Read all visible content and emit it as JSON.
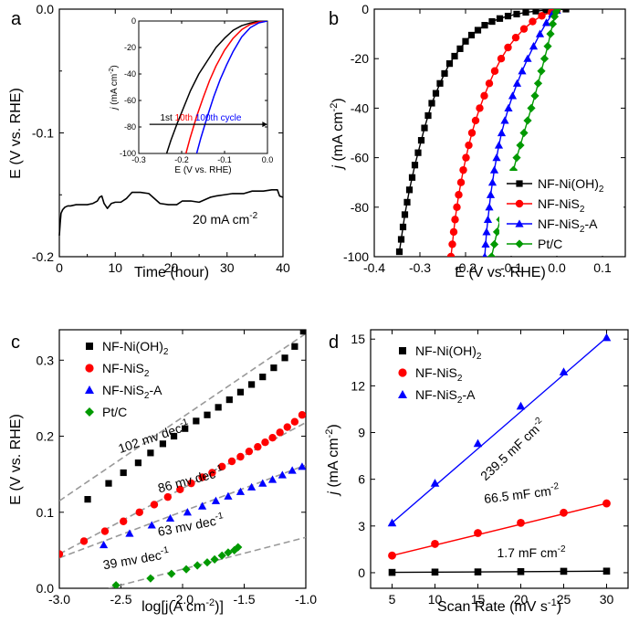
{
  "colors": {
    "black": "#000000",
    "red": "#ff0000",
    "blue": "#0000ff",
    "green": "#009900",
    "fit": "#999999"
  },
  "chart_data": [
    {
      "letter": "a",
      "type": "line",
      "xlabel": "Time (hour)",
      "ylabel": "E (V vs. RHE)",
      "xlim": [
        0,
        40
      ],
      "ylim": [
        -0.2,
        0.0
      ],
      "xticks": [
        "0",
        "10",
        "20",
        "30",
        "40"
      ],
      "yticks": [
        "-0.2",
        "-0.1",
        "0.0"
      ],
      "annotation": "20 mA cm",
      "annotation_sup": "-2",
      "series": [
        {
          "color": "black",
          "x": [
            0,
            0.15,
            0.3,
            0.6,
            1.0,
            1.5,
            2.0,
            3.0,
            4.0,
            5.0,
            6.0,
            6.8,
            7.2,
            7.6,
            8.0,
            8.6,
            9.3,
            10.0,
            11.0,
            12.0,
            12.6,
            13.0,
            13.5,
            14.5,
            16.0,
            18.0,
            19.5,
            21.0,
            22.0,
            23.5,
            25.0,
            27.0,
            28.0,
            29.5,
            31.0,
            33.0,
            34.5,
            36.5,
            38.0,
            39.0,
            39.4,
            40.0
          ],
          "y": [
            -0.183,
            -0.173,
            -0.165,
            -0.162,
            -0.16,
            -0.159,
            -0.159,
            -0.158,
            -0.158,
            -0.158,
            -0.157,
            -0.155,
            -0.152,
            -0.151,
            -0.157,
            -0.161,
            -0.157,
            -0.156,
            -0.156,
            -0.153,
            -0.15,
            -0.148,
            -0.148,
            -0.148,
            -0.149,
            -0.157,
            -0.158,
            -0.158,
            -0.155,
            -0.155,
            -0.156,
            -0.152,
            -0.151,
            -0.15,
            -0.149,
            -0.149,
            -0.147,
            -0.147,
            -0.146,
            -0.146,
            -0.151,
            -0.152
          ]
        }
      ],
      "inset": {
        "type": "line",
        "xlabel": "E (V vs. RHE)",
        "ylabel_j": "j",
        "ylabel_rest": " (mA cm",
        "ylabel_sup": "-2",
        "ylabel_end": ")",
        "xlim": [
          -0.3,
          0.0
        ],
        "ylim": [
          -100,
          0
        ],
        "xticks": [
          "-0.3",
          "-0.2",
          "-0.1",
          "0.0"
        ],
        "yticks": [
          "-100",
          "-80",
          "-60",
          "-40",
          "-20",
          "0"
        ],
        "cycle_labels": [
          "1st",
          "10th",
          "100th cycle"
        ],
        "series": [
          {
            "color": "black",
            "x": [
              -0.235,
              -0.225,
              -0.21,
              -0.195,
              -0.18,
              -0.16,
              -0.14,
              -0.12,
              -0.1,
              -0.08,
              -0.06,
              -0.04,
              -0.02,
              0.0
            ],
            "y": [
              -100,
              -90,
              -77,
              -65,
              -53,
              -40,
              -30,
              -20,
              -13,
              -7,
              -3.5,
              -1.5,
              -0.4,
              0
            ]
          },
          {
            "color": "red",
            "x": [
              -0.19,
              -0.18,
              -0.165,
              -0.15,
              -0.135,
              -0.12,
              -0.1,
              -0.08,
              -0.06,
              -0.04,
              -0.02,
              0.0
            ],
            "y": [
              -100,
              -88,
              -72,
              -58,
              -45,
              -34,
              -22,
              -13,
              -6.5,
              -2.5,
              -0.7,
              0
            ]
          },
          {
            "color": "blue",
            "x": [
              -0.165,
              -0.155,
              -0.14,
              -0.125,
              -0.11,
              -0.095,
              -0.08,
              -0.06,
              -0.04,
              -0.02,
              0.0
            ],
            "y": [
              -100,
              -88,
              -72,
              -57,
              -44,
              -33,
              -23,
              -12,
              -5,
              -1.4,
              0
            ]
          }
        ]
      }
    },
    {
      "letter": "b",
      "type": "line",
      "xlabel": "E (V vs. RHE)",
      "ylabel_j": "j",
      "ylabel_rest": " (mA cm",
      "ylabel_sup": "-2",
      "ylabel_end": ")",
      "xlim": [
        -0.4,
        0.15
      ],
      "ylim": [
        -100,
        0
      ],
      "xticks": [
        "-0.4",
        "-0.3",
        "-0.2",
        "-0.1",
        "0.0",
        "0.1"
      ],
      "yticks": [
        "-100",
        "-80",
        "-60",
        "-40",
        "-20",
        "0"
      ],
      "series": [
        {
          "name": "NF-Ni(OH)",
          "sub": "2",
          "color": "black",
          "marker": "square",
          "x": [
            -0.345,
            -0.341,
            -0.337,
            -0.333,
            -0.328,
            -0.323,
            -0.317,
            -0.311,
            -0.304,
            -0.297,
            -0.29,
            -0.282,
            -0.274,
            -0.265,
            -0.256,
            -0.246,
            -0.235,
            -0.224,
            -0.212,
            -0.2,
            -0.187,
            -0.173,
            -0.158,
            -0.142,
            -0.125,
            -0.107,
            -0.088,
            -0.068,
            -0.046,
            -0.024,
            0.0,
            0.02
          ],
          "y": [
            -98,
            -93,
            -88,
            -83,
            -78,
            -73,
            -68,
            -63,
            -58,
            -53,
            -48,
            -43,
            -38,
            -34,
            -30,
            -26,
            -22,
            -19,
            -16,
            -13,
            -10.5,
            -8.5,
            -6.5,
            -5,
            -3.8,
            -2.8,
            -2,
            -1.3,
            -0.8,
            -0.4,
            -0.2,
            0
          ]
        },
        {
          "name": "NF-NiS",
          "sub": "2",
          "color": "red",
          "marker": "circle",
          "x": [
            -0.232,
            -0.229,
            -0.226,
            -0.223,
            -0.219,
            -0.215,
            -0.21,
            -0.205,
            -0.199,
            -0.193,
            -0.186,
            -0.178,
            -0.169,
            -0.159,
            -0.148,
            -0.136,
            -0.122,
            -0.107,
            -0.09,
            -0.072,
            -0.053,
            -0.033,
            -0.012,
            0.0
          ],
          "y": [
            -100,
            -95,
            -90,
            -85,
            -80,
            -75,
            -70,
            -65,
            -60,
            -55,
            -50,
            -45,
            -40,
            -35,
            -30,
            -25,
            -20,
            -15.5,
            -11.5,
            -8,
            -5,
            -2.7,
            -1.2,
            -0.5
          ]
        },
        {
          "name": "NF-NiS",
          "sub": "2",
          "suffix": "-A",
          "color": "blue",
          "marker": "triangle",
          "x": [
            -0.158,
            -0.156,
            -0.154,
            -0.151,
            -0.148,
            -0.145,
            -0.141,
            -0.137,
            -0.132,
            -0.127,
            -0.121,
            -0.114,
            -0.106,
            -0.097,
            -0.087,
            -0.076,
            -0.064,
            -0.051,
            -0.037,
            -0.023,
            -0.01,
            0.0
          ],
          "y": [
            -100,
            -95,
            -90,
            -85,
            -80,
            -75,
            -70,
            -65,
            -60,
            -55,
            -50,
            -45,
            -40,
            -35,
            -30,
            -25,
            -20,
            -15,
            -10,
            -5.5,
            -2,
            -0.5
          ]
        },
        {
          "name": "Pt/C",
          "color": "green",
          "marker": "diamond",
          "x": [
            -0.143,
            -0.137,
            -0.131,
            -0.124,
            -0.117,
            -0.11,
            -0.103,
            -0.095,
            -0.088,
            -0.08,
            -0.072,
            -0.064,
            -0.056,
            -0.048,
            -0.041,
            -0.034,
            -0.027,
            -0.02,
            -0.014,
            -0.009,
            -0.005,
            -0.002,
            0.001
          ],
          "y": [
            -100,
            -95,
            -90,
            -85,
            -80,
            -75,
            -70,
            -65,
            -60,
            -55,
            -50,
            -45,
            -40,
            -35,
            -30,
            -25,
            -20,
            -15,
            -10,
            -6,
            -3,
            -1.2,
            0
          ]
        }
      ]
    },
    {
      "letter": "c",
      "type": "scatter",
      "xlabel_pre": "log[j(A cm",
      "xlabel_sup": "-2",
      "xlabel_post": ")]",
      "ylabel": "E (V vs. RHE)",
      "xlim": [
        -3.0,
        -1.0
      ],
      "ylim": [
        0.0,
        0.34
      ],
      "xticks": [
        "-3.0",
        "-2.5",
        "-2.0",
        "-1.5",
        "-1.0"
      ],
      "yticks": [
        "0.0",
        "0.1",
        "0.2",
        "0.3"
      ],
      "slope_unit": "mv dec",
      "slope_sup": "-1",
      "series": [
        {
          "name": "NF-Ni(OH)",
          "sub": "2",
          "color": "black",
          "marker": "square",
          "slope": "102",
          "fit": [
            [
              -3.0,
              0.115
            ],
            [
              -1.0,
              0.335
            ]
          ],
          "x": [
            -2.77,
            -2.6,
            -2.48,
            -2.36,
            -2.26,
            -2.16,
            -2.07,
            -1.98,
            -1.89,
            -1.8,
            -1.71,
            -1.62,
            -1.53,
            -1.44,
            -1.35,
            -1.26,
            -1.17,
            -1.09,
            -1.02
          ],
          "y": [
            0.117,
            0.138,
            0.152,
            0.165,
            0.178,
            0.19,
            0.2,
            0.21,
            0.22,
            0.228,
            0.238,
            0.248,
            0.258,
            0.268,
            0.278,
            0.29,
            0.303,
            0.318,
            0.338
          ]
        },
        {
          "name": "NF-NiS",
          "sub": "2",
          "color": "red",
          "marker": "circle",
          "slope": "86",
          "fit": [
            [
              -3.0,
              0.045
            ],
            [
              -1.0,
              0.218
            ]
          ],
          "x": [
            -3.0,
            -2.8,
            -2.63,
            -2.48,
            -2.35,
            -2.23,
            -2.12,
            -2.02,
            -1.93,
            -1.84,
            -1.76,
            -1.68,
            -1.6,
            -1.53,
            -1.46,
            -1.39,
            -1.33,
            -1.27,
            -1.21,
            -1.15,
            -1.09,
            -1.03
          ],
          "y": [
            0.045,
            0.062,
            0.075,
            0.088,
            0.1,
            0.11,
            0.12,
            0.13,
            0.138,
            0.146,
            0.152,
            0.16,
            0.167,
            0.173,
            0.18,
            0.186,
            0.192,
            0.198,
            0.205,
            0.212,
            0.219,
            0.228
          ]
        },
        {
          "name": "NF-NiS",
          "sub": "2",
          "suffix": "-A",
          "color": "blue",
          "marker": "triangle",
          "slope": "63",
          "fit": [
            [
              -3.0,
              0.04
            ],
            [
              -1.0,
              0.162
            ]
          ],
          "x": [
            -2.64,
            -2.43,
            -2.25,
            -2.1,
            -1.96,
            -1.84,
            -1.73,
            -1.63,
            -1.53,
            -1.44,
            -1.35,
            -1.27,
            -1.19,
            -1.11,
            -1.03
          ],
          "y": [
            0.057,
            0.072,
            0.083,
            0.092,
            0.1,
            0.108,
            0.115,
            0.121,
            0.127,
            0.133,
            0.138,
            0.143,
            0.149,
            0.155,
            0.16
          ]
        },
        {
          "name": "Pt/C",
          "color": "green",
          "marker": "diamond",
          "slope": "39",
          "fit": [
            [
              -2.6,
              0.0
            ],
            [
              -1.0,
              0.067
            ]
          ],
          "x": [
            -2.54,
            -2.26,
            -2.09,
            -1.97,
            -1.88,
            -1.8,
            -1.74,
            -1.68,
            -1.63,
            -1.58,
            -1.55
          ],
          "y": [
            0.004,
            0.013,
            0.019,
            0.025,
            0.03,
            0.034,
            0.038,
            0.043,
            0.047,
            0.05,
            0.054
          ]
        }
      ]
    },
    {
      "letter": "d",
      "type": "scatter",
      "xlabel_pre": "Scan Rate (mV s",
      "xlabel_sup": "-1",
      "xlabel_post": ")",
      "ylabel_j": "j",
      "ylabel_rest": " (mA cm",
      "ylabel_sup": "-2",
      "ylabel_end": ")",
      "xlim": [
        2.5,
        32.5
      ],
      "ylim": [
        -1.0,
        15.6
      ],
      "xticks": [
        "5",
        "10",
        "15",
        "20",
        "25",
        "30"
      ],
      "yticks": [
        "0",
        "3",
        "6",
        "9",
        "12",
        "15"
      ],
      "cap_unit": "mF cm",
      "cap_sup": "-2",
      "series": [
        {
          "name": "NF-Ni(OH)",
          "sub": "2",
          "color": "black",
          "marker": "square",
          "cap": "1.7",
          "x": [
            5,
            10,
            15,
            20,
            25,
            30
          ],
          "y": [
            0.02,
            0.04,
            0.05,
            0.07,
            0.09,
            0.1
          ]
        },
        {
          "name": "NF-NiS",
          "sub": "2",
          "color": "red",
          "marker": "circle",
          "cap": "66.5",
          "x": [
            5,
            10,
            15,
            20,
            25,
            30
          ],
          "y": [
            1.1,
            1.85,
            2.55,
            3.2,
            3.85,
            4.45
          ]
        },
        {
          "name": "NF-NiS",
          "sub": "2",
          "suffix": "-A",
          "color": "blue",
          "marker": "triangle",
          "cap": "239.5",
          "x": [
            5,
            10,
            15,
            20,
            25,
            30
          ],
          "y": [
            3.2,
            5.75,
            8.3,
            10.7,
            12.9,
            15.1
          ]
        }
      ]
    }
  ]
}
